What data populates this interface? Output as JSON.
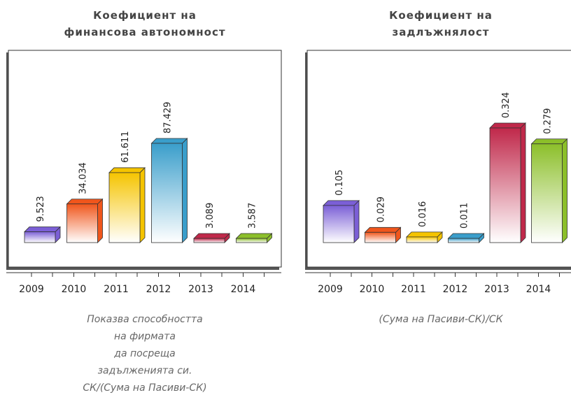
{
  "chart_data": [
    {
      "type": "bar",
      "title": [
        "Коефициент на",
        "финансова автономност"
      ],
      "categories": [
        "2009",
        "2010",
        "2011",
        "2012",
        "2013",
        "2014"
      ],
      "values": [
        9.523,
        34.034,
        61.611,
        87.429,
        3.089,
        3.587
      ],
      "colors": [
        "#7b5fd6",
        "#f0561c",
        "#f5c400",
        "#3a9ecb",
        "#c0284a",
        "#8cbf2a"
      ],
      "description": [
        "Показва способността",
        "на фирмата",
        "да посреща",
        "задълженията си.",
        "СК/(Сума на Пасиви-СК)"
      ]
    },
    {
      "type": "bar",
      "title": [
        "Коефициент на",
        "задлъжнялост"
      ],
      "categories": [
        "2009",
        "2010",
        "2011",
        "2012",
        "2013",
        "2014"
      ],
      "values": [
        0.105,
        0.029,
        0.016,
        0.011,
        0.324,
        0.279
      ],
      "colors": [
        "#7b5fd6",
        "#f0561c",
        "#f5c400",
        "#3a9ecb",
        "#c0284a",
        "#8cbf2a"
      ],
      "description": [
        "(Сума на Пасиви-СК)/СК"
      ]
    }
  ]
}
